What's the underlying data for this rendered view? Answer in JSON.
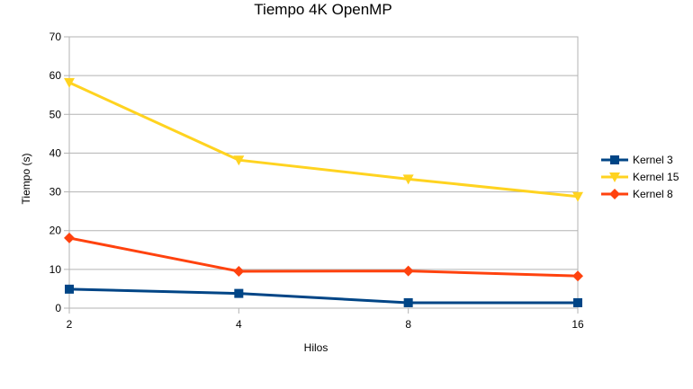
{
  "chart_data": {
    "type": "line",
    "title": "Tiempo 4K OpenMP",
    "xlabel": "Hilos",
    "ylabel": "Tiempo (s)",
    "categories": [
      "2",
      "4",
      "8",
      "16"
    ],
    "ylim": [
      0,
      70
    ],
    "yticks": [
      0,
      10,
      20,
      30,
      40,
      50,
      60,
      70
    ],
    "grid": true,
    "legend_position": "right",
    "series": [
      {
        "name": "Kernel 3",
        "values": [
          4.9,
          3.8,
          1.4,
          1.4
        ],
        "color": "#004586",
        "marker": "square"
      },
      {
        "name": "Kernel 15",
        "values": [
          58.2,
          38.2,
          33.3,
          28.8
        ],
        "color": "#ffd320",
        "marker": "triangle-down"
      },
      {
        "name": "Kernel 8",
        "values": [
          18.1,
          9.5,
          9.6,
          8.3
        ],
        "color": "#ff420e",
        "marker": "diamond"
      }
    ]
  }
}
